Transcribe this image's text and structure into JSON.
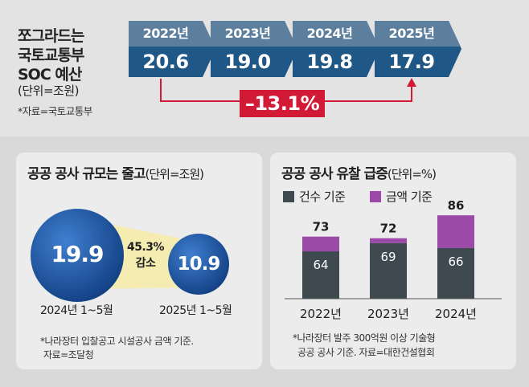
{
  "header": {
    "title_lines": [
      "쪼그라드는",
      "국토교통부",
      "SOC 예산"
    ],
    "unit": "(단위=조원)",
    "source": "*자료=국토교통부"
  },
  "colors": {
    "year_band": "#5d7f9e",
    "value_band": "#1f5786",
    "change_red": "#d21a36",
    "bar_count": "#3e4a4f",
    "bar_amount": "#9b4aa8",
    "circle_blue": "#1c57a8"
  },
  "soc_budget": [
    {
      "year": "2022년",
      "value": "20.6"
    },
    {
      "year": "2023년",
      "value": "19.0"
    },
    {
      "year": "2024년",
      "value": "19.8"
    },
    {
      "year": "2025년",
      "value": "17.9"
    }
  ],
  "change": "–13.1%",
  "left_panel": {
    "title": "공공 공사 규모는 줄고",
    "title_unit": "(단위=조원)",
    "circles": [
      {
        "value": "19.9",
        "label": "2024년 1~5월"
      },
      {
        "value": "10.9",
        "label": "2025년 1~5월"
      }
    ],
    "decline_pct": "45.3%",
    "decline_word": "감소",
    "note_lines": [
      "*나라장터 입찰공고 시설공사 금액 기준.",
      "자료=조달청"
    ]
  },
  "right_panel": {
    "title": "공공 공사 유찰 급증",
    "title_unit": "(단위=%)",
    "legend": [
      "건수 기준",
      "금액 기준"
    ],
    "note_lines": [
      "*나라장터 발주 300억원 이상 기술형",
      "공공 공사 기준. 자료=대한건설협회"
    ]
  },
  "chart_data": [
    {
      "type": "bar",
      "title": "쪼그라드는 국토교통부 SOC 예산",
      "unit": "조원",
      "categories": [
        "2022년",
        "2023년",
        "2024년",
        "2025년"
      ],
      "values": [
        20.6,
        19.0,
        19.8,
        17.9
      ],
      "annotation": "–13.1%"
    },
    {
      "type": "bubble",
      "title": "공공 공사 규모는 줄고",
      "unit": "조원",
      "categories": [
        "2024년 1~5월",
        "2025년 1~5월"
      ],
      "values": [
        19.9,
        10.9
      ],
      "annotation": "45.3% 감소"
    },
    {
      "type": "bar",
      "title": "공공 공사 유찰 급증",
      "unit": "%",
      "categories": [
        "2022년",
        "2023년",
        "2024년"
      ],
      "series": [
        {
          "name": "건수 기준",
          "values": [
            64,
            69,
            66
          ]
        },
        {
          "name": "금액 기준",
          "values": [
            73,
            72,
            86
          ]
        }
      ],
      "ylim": [
        0,
        100
      ]
    }
  ]
}
